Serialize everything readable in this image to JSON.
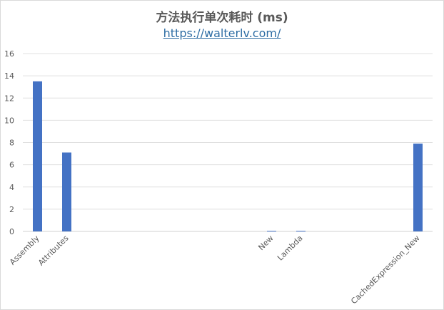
{
  "chart_data": {
    "type": "bar",
    "title": "方法执行单次耗时 (ms)",
    "subtitle": "https://walterlv.com/",
    "categories": [
      "Assembly",
      "Attributes",
      "",
      "",
      "",
      "",
      "",
      "",
      "New",
      "Lambda",
      "",
      "",
      "",
      "CachedExpression_New"
    ],
    "values": [
      13.5,
      7.1,
      0,
      0,
      0,
      0,
      0,
      0,
      0.05,
      0.05,
      0,
      0,
      0,
      7.9
    ],
    "ylim": [
      0,
      16
    ],
    "yticks": [
      "0",
      "2",
      "4",
      "6",
      "8",
      "10",
      "12",
      "14",
      "16"
    ],
    "grid": true,
    "legend": "none",
    "bar_color": "#4472c4"
  }
}
